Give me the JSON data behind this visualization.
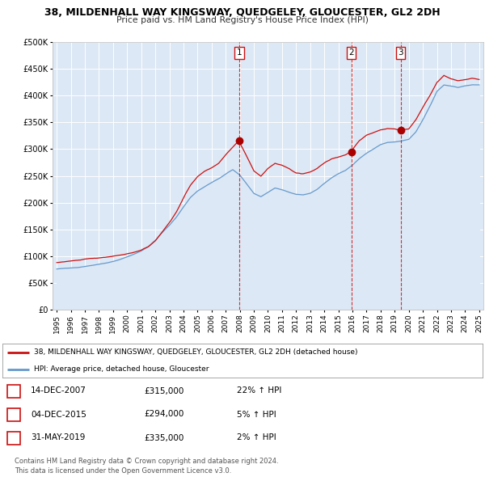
{
  "title": "38, MILDENHALL WAY KINGSWAY, QUEDGELEY, GLOUCESTER, GL2 2DH",
  "subtitle": "Price paid vs. HM Land Registry's House Price Index (HPI)",
  "legend_red": "38, MILDENHALL WAY KINGSWAY, QUEDGELEY, GLOUCESTER, GL2 2DH (detached house)",
  "legend_blue": "HPI: Average price, detached house, Gloucester",
  "transactions": [
    {
      "num": 1,
      "date": "14-DEC-2007",
      "price": "£315,000",
      "hpi": "22% ↑ HPI",
      "year": 2007.958
    },
    {
      "num": 2,
      "date": "04-DEC-2015",
      "price": "£294,000",
      "hpi": "5% ↑ HPI",
      "year": 2015.917
    },
    {
      "num": 3,
      "date": "31-MAY-2019",
      "price": "£335,000",
      "hpi": "2% ↑ HPI",
      "year": 2019.417
    }
  ],
  "footer1": "Contains HM Land Registry data © Crown copyright and database right 2024.",
  "footer2": "This data is licensed under the Open Government Licence v3.0.",
  "ylim": [
    0,
    500000
  ],
  "yticks": [
    0,
    50000,
    100000,
    150000,
    200000,
    250000,
    300000,
    350000,
    400000,
    450000,
    500000
  ],
  "xlim_start": 1994.7,
  "xlim_end": 2025.3,
  "bg_color": "#dce8f5",
  "plot_bg": "#ffffff",
  "red_color": "#cc1111",
  "blue_color": "#6699cc",
  "blue_fill": "#dce8f5",
  "dashed_color": "#cc1111",
  "marker_color": "#aa0000",
  "grid_color": "#ffffff"
}
